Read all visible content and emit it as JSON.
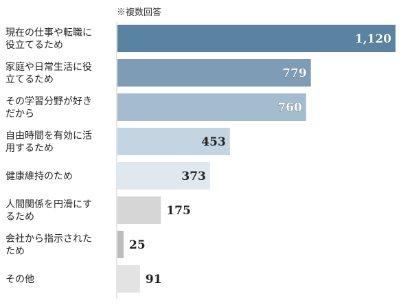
{
  "chart_data": {
    "type": "bar",
    "orientation": "horizontal",
    "note": "※複数回答",
    "categories": [
      [
        "現在の仕事や転職に",
        "役立てるため"
      ],
      [
        "家庭や日常生活に役",
        "立てるため"
      ],
      [
        "その学習分野が好き",
        "だから"
      ],
      [
        "自由時間を有効に活",
        "用するため"
      ],
      [
        "健康維持のため"
      ],
      [
        "人間関係を円滑にす",
        "るため"
      ],
      [
        "会社から指示された",
        "ため"
      ],
      [
        "その他"
      ]
    ],
    "values": [
      1120,
      779,
      760,
      453,
      373,
      175,
      25,
      91
    ],
    "value_labels": [
      "1,120",
      "779",
      "760",
      "453",
      "373",
      "175",
      "25",
      "91"
    ],
    "bar_colors": [
      "#5a82a1",
      "#7e9cb6",
      "#a5bccf",
      "#c5d4e1",
      "#e0e8ef",
      "#d6d6d6",
      "#bcbcbc",
      "#e3e3e3"
    ],
    "xlim": [
      0,
      1120
    ],
    "grid": false,
    "legend": "none"
  }
}
